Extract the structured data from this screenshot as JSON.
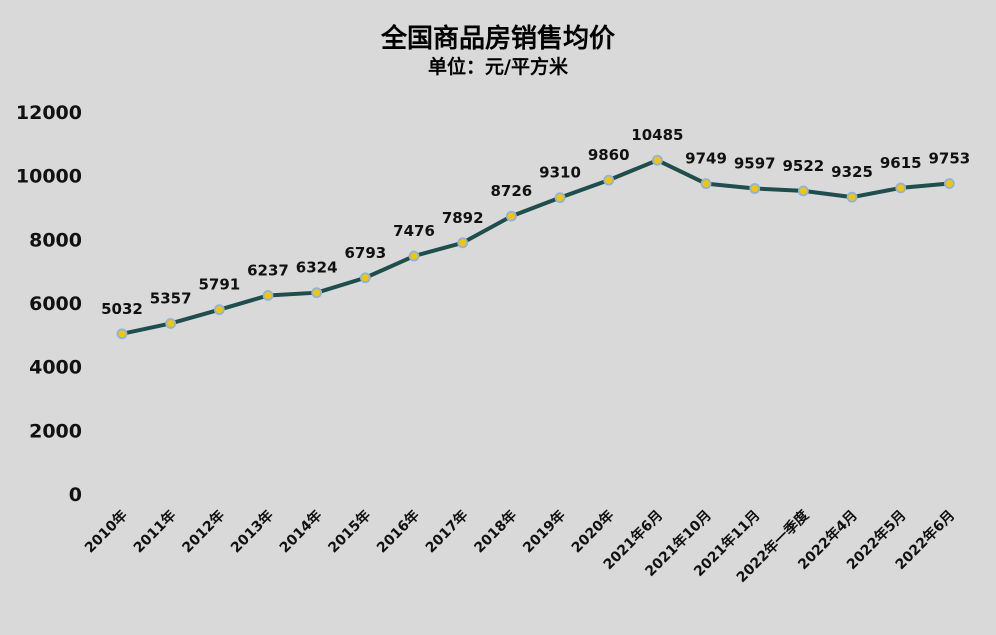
{
  "chart_data": {
    "type": "line",
    "title": "全国商品房销售均价",
    "subtitle": "单位：元/平方米",
    "categories": [
      "2010年",
      "2011年",
      "2012年",
      "2013年",
      "2014年",
      "2015年",
      "2016年",
      "2017年",
      "2018年",
      "2019年",
      "2020年",
      "2021年6月",
      "2021年10月",
      "2021年11月",
      "2022年一季度",
      "2022年4月",
      "2022年5月",
      "2022年6月"
    ],
    "series": [
      {
        "values": [
          5032,
          5357,
          5791,
          6237,
          6324,
          6793,
          7476,
          7892,
          8726,
          9310,
          9860,
          10485,
          9749,
          9597,
          9522,
          9325,
          9615,
          9753
        ]
      }
    ],
    "ylim": [
      0,
      12000
    ],
    "yticks": [
      0,
      2000,
      4000,
      6000,
      8000,
      10000,
      12000
    ],
    "grid": false,
    "line_color": "#1f4e4d",
    "marker_color": "#f2c40c",
    "marker_edge_color": "#8fb3d9"
  }
}
